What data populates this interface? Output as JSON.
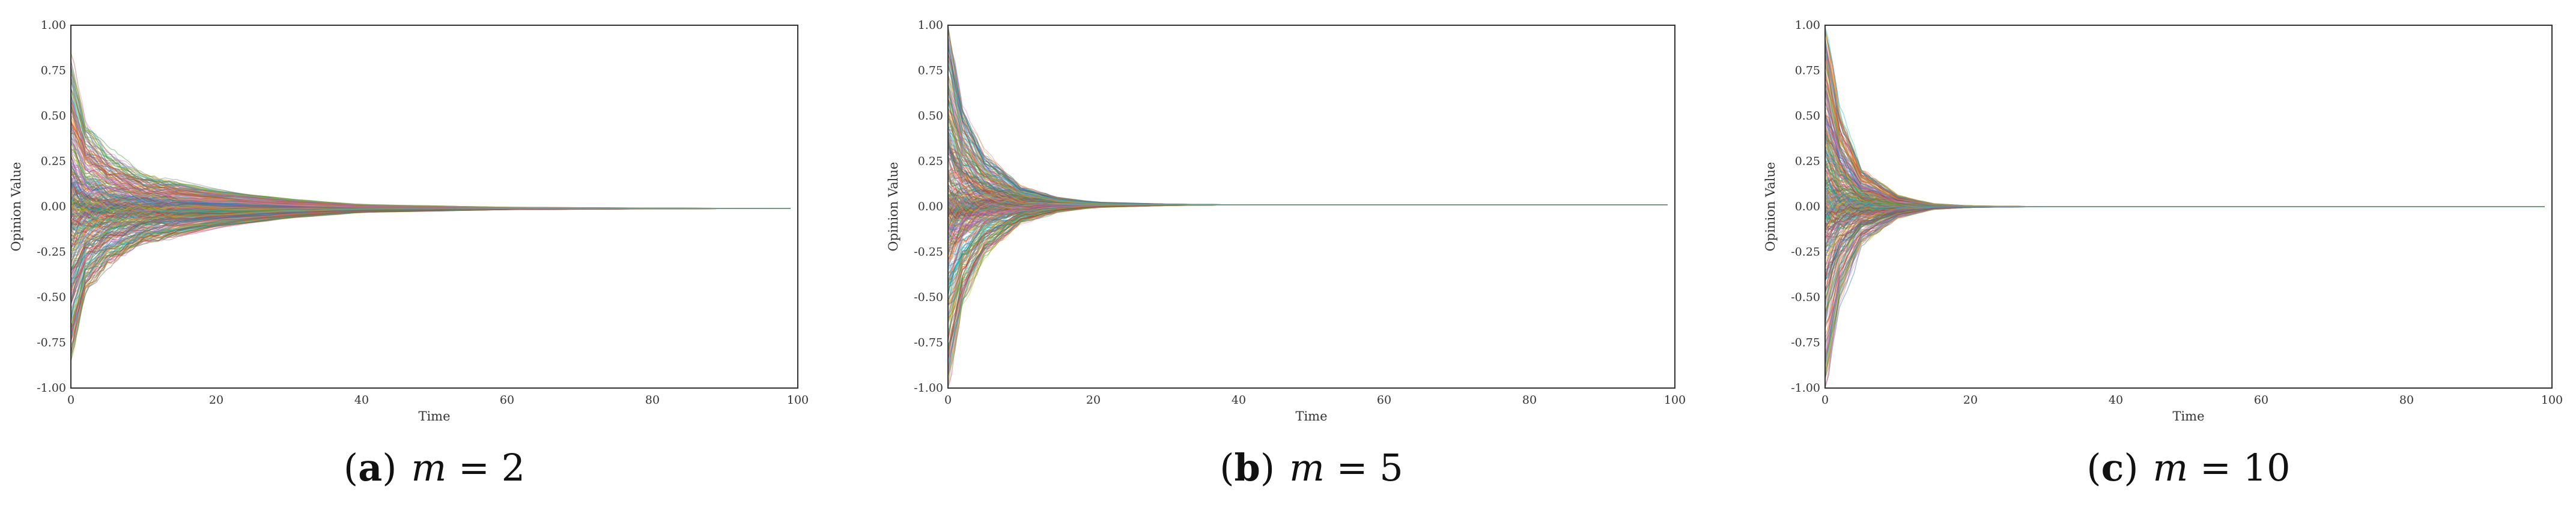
{
  "chart_data": [
    {
      "type": "line",
      "caption": {
        "open": "(",
        "letter": "a",
        "close": ")",
        "var": "m",
        "eq": " = ",
        "value": "2"
      },
      "xlabel": "Time",
      "ylabel": "Opinion Value",
      "xlim": [
        0,
        100
      ],
      "ylim": [
        -1.0,
        1.0
      ],
      "x_ticks": [
        "0",
        "20",
        "40",
        "60",
        "80",
        "100"
      ],
      "y_ticks": [
        "1.00",
        "0.75",
        "0.50",
        "0.25",
        "0.00",
        "-0.25",
        "-0.50",
        "-0.75",
        "-1.00"
      ],
      "grid": false,
      "series": {
        "description_count": 400,
        "initial_range": [
          -0.85,
          0.82
        ],
        "spread_envelope": [
          [
            0,
            0.82
          ],
          [
            2,
            0.45
          ],
          [
            5,
            0.3
          ],
          [
            10,
            0.18
          ],
          [
            20,
            0.1
          ],
          [
            30,
            0.05
          ],
          [
            40,
            0.02
          ],
          [
            60,
            0.006
          ],
          [
            80,
            0.002
          ],
          [
            99,
            0.0
          ]
        ],
        "converged_value": -0.01,
        "x_end": 99
      }
    },
    {
      "type": "line",
      "caption": {
        "open": "(",
        "letter": "b",
        "close": ")",
        "var": "m",
        "eq": " = ",
        "value": "5"
      },
      "xlabel": "Time",
      "ylabel": "Opinion Value",
      "xlim": [
        0,
        100
      ],
      "ylim": [
        -1.0,
        1.0
      ],
      "x_ticks": [
        "0",
        "20",
        "40",
        "60",
        "80",
        "100"
      ],
      "y_ticks": [
        "1.00",
        "0.75",
        "0.50",
        "0.25",
        "0.00",
        "-0.25",
        "-0.50",
        "-0.75",
        "-1.00"
      ],
      "grid": false,
      "series": {
        "description_count": 400,
        "initial_range": [
          -1.0,
          1.0
        ],
        "spread_envelope": [
          [
            0,
            1.0
          ],
          [
            2,
            0.55
          ],
          [
            5,
            0.28
          ],
          [
            10,
            0.1
          ],
          [
            15,
            0.04
          ],
          [
            20,
            0.015
          ],
          [
            30,
            0.004
          ],
          [
            40,
            0.0
          ],
          [
            99,
            0.0
          ]
        ],
        "converged_value": 0.01,
        "x_end": 99
      }
    },
    {
      "type": "line",
      "caption": {
        "open": "(",
        "letter": "c",
        "close": ")",
        "var": "m",
        "eq": " = ",
        "value": "10"
      },
      "xlabel": "Time",
      "ylabel": "Opinion Value",
      "xlim": [
        0,
        100
      ],
      "ylim": [
        -1.0,
        1.0
      ],
      "x_ticks": [
        "0",
        "20",
        "40",
        "60",
        "80",
        "100"
      ],
      "y_ticks": [
        "1.00",
        "0.75",
        "0.50",
        "0.25",
        "0.00",
        "-0.25",
        "-0.50",
        "-0.75",
        "-1.00"
      ],
      "grid": false,
      "series": {
        "description_count": 400,
        "initial_range": [
          -1.0,
          1.0
        ],
        "spread_envelope": [
          [
            0,
            1.0
          ],
          [
            2,
            0.5
          ],
          [
            5,
            0.2
          ],
          [
            10,
            0.06
          ],
          [
            15,
            0.015
          ],
          [
            20,
            0.004
          ],
          [
            30,
            0.0
          ],
          [
            99,
            0.0
          ]
        ],
        "converged_value": 0.0,
        "x_end": 99
      }
    }
  ],
  "palette": [
    "#1f77b4",
    "#ff7f0e",
    "#2ca02c",
    "#d62728",
    "#9467bd",
    "#8c564b",
    "#e377c2",
    "#7f7f7f",
    "#bcbd22",
    "#17becf"
  ]
}
